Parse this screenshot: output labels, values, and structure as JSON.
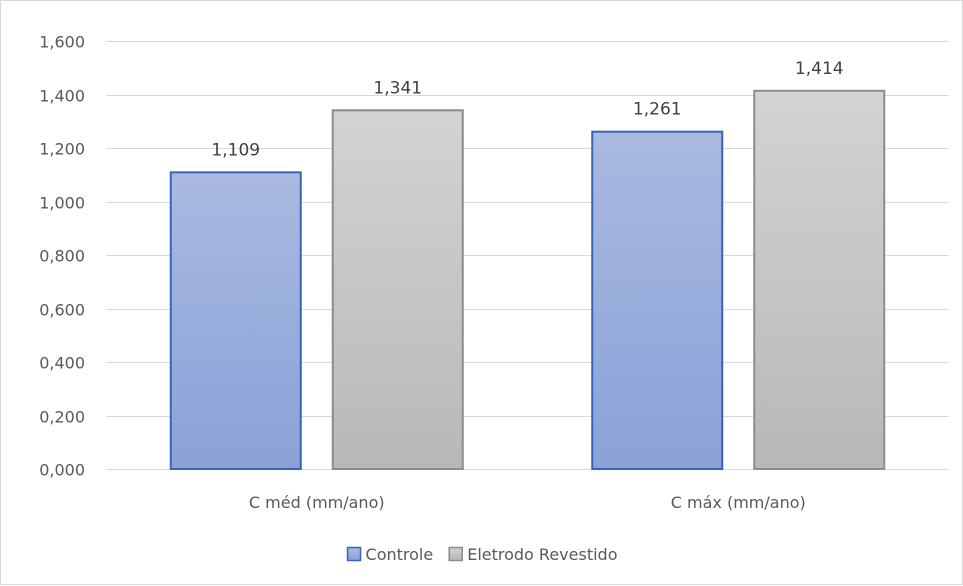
{
  "chart_data": {
    "type": "bar",
    "title": "",
    "xlabel": "",
    "ylabel": "",
    "categories": [
      "C méd (mm/ano)",
      "C máx (mm/ano)"
    ],
    "series": [
      {
        "name": "Controle",
        "values": [
          1.109,
          1.261
        ],
        "value_labels": [
          "1,109",
          "1,261"
        ],
        "color_top": "#a9b9e0",
        "color_bottom": "#8aa2d9",
        "border": "#3a63b8"
      },
      {
        "name": "Eletrodo Revestido",
        "values": [
          1.341,
          1.414
        ],
        "value_labels": [
          "1,341",
          "1,414"
        ],
        "color_top": "#d3d3d3",
        "color_bottom": "#b8b8b8",
        "border": "#8c8c8c"
      }
    ],
    "ylim": [
      0,
      1.6
    ],
    "yticks": [
      0,
      0.2,
      0.4,
      0.6,
      0.8,
      1.0,
      1.2,
      1.4,
      1.6
    ],
    "ytick_labels": [
      "0,000",
      "0,200",
      "0,400",
      "0,600",
      "0,800",
      "1,000",
      "1,200",
      "1,400",
      "1,600"
    ],
    "grid": true,
    "gridline_color": "#d9d9d9",
    "legend_position": "bottom"
  }
}
